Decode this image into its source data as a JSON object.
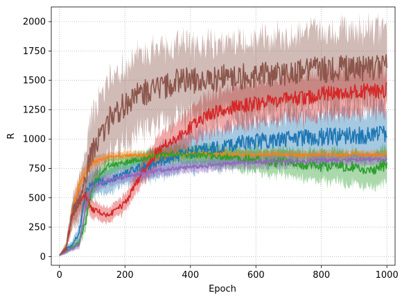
{
  "chart_data": {
    "type": "line",
    "title": "",
    "xlabel": "Epoch",
    "ylabel": "R",
    "xlim": [
      -25,
      1025
    ],
    "ylim": [
      -75,
      2125
    ],
    "xticks": [
      0,
      200,
      400,
      600,
      800,
      1000
    ],
    "yticks": [
      0,
      250,
      500,
      750,
      1000,
      1250,
      1500,
      1750,
      2000
    ],
    "grid": true,
    "grid_style": "dotted",
    "legend": "none",
    "series": [
      {
        "color": "#1f77b4",
        "x": [
          0,
          20,
          40,
          60,
          80,
          100,
          150,
          200,
          250,
          300,
          350,
          400,
          450,
          500,
          550,
          600,
          650,
          700,
          750,
          800,
          850,
          900,
          950,
          1000
        ],
        "y": [
          10,
          60,
          100,
          200,
          550,
          620,
          650,
          700,
          760,
          790,
          850,
          880,
          920,
          930,
          970,
          980,
          990,
          1000,
          1010,
          1020,
          1020,
          1030,
          1040,
          1050
        ],
        "band": [
          5,
          20,
          30,
          50,
          80,
          90,
          80,
          80,
          90,
          100,
          110,
          120,
          130,
          140,
          140,
          150,
          150,
          160,
          160,
          170,
          170,
          170,
          180,
          180
        ]
      },
      {
        "color": "#ff7f0e",
        "x": [
          0,
          20,
          40,
          60,
          80,
          100,
          150,
          200,
          250,
          300,
          350,
          400,
          450,
          500,
          550,
          600,
          650,
          700,
          750,
          800,
          850,
          900,
          950,
          1000
        ],
        "y": [
          10,
          80,
          400,
          600,
          720,
          800,
          850,
          860,
          860,
          860,
          870,
          870,
          870,
          870,
          870,
          860,
          870,
          870,
          860,
          870,
          860,
          870,
          860,
          870
        ],
        "band": [
          5,
          20,
          60,
          60,
          50,
          40,
          30,
          30,
          30,
          30,
          30,
          30,
          30,
          30,
          30,
          30,
          30,
          30,
          30,
          30,
          30,
          30,
          30,
          30
        ]
      },
      {
        "color": "#2ca02c",
        "x": [
          0,
          20,
          40,
          60,
          80,
          100,
          150,
          200,
          250,
          300,
          350,
          400,
          450,
          500,
          550,
          600,
          650,
          700,
          750,
          800,
          850,
          900,
          950,
          1000
        ],
        "y": [
          10,
          40,
          80,
          120,
          300,
          600,
          770,
          800,
          830,
          860,
          870,
          860,
          860,
          850,
          830,
          830,
          800,
          820,
          780,
          760,
          780,
          760,
          740,
          780
        ],
        "band": [
          5,
          15,
          20,
          30,
          60,
          70,
          60,
          50,
          50,
          50,
          60,
          60,
          70,
          70,
          80,
          80,
          90,
          90,
          100,
          100,
          110,
          110,
          110,
          120
        ]
      },
      {
        "color": "#d62728",
        "x": [
          0,
          20,
          40,
          60,
          80,
          100,
          150,
          200,
          250,
          300,
          350,
          400,
          450,
          500,
          550,
          600,
          650,
          700,
          750,
          800,
          850,
          900,
          950,
          1000
        ],
        "y": [
          10,
          60,
          350,
          480,
          520,
          400,
          350,
          450,
          700,
          900,
          1000,
          1100,
          1200,
          1250,
          1280,
          1300,
          1330,
          1350,
          1360,
          1380,
          1390,
          1400,
          1410,
          1420
        ],
        "band": [
          5,
          20,
          80,
          80,
          70,
          60,
          50,
          60,
          80,
          100,
          110,
          120,
          130,
          140,
          140,
          140,
          140,
          150,
          150,
          150,
          150,
          150,
          150,
          150
        ]
      },
      {
        "color": "#9467bd",
        "x": [
          0,
          20,
          40,
          60,
          80,
          100,
          150,
          200,
          250,
          300,
          350,
          400,
          450,
          500,
          550,
          600,
          650,
          700,
          750,
          800,
          850,
          900,
          950,
          1000
        ],
        "y": [
          10,
          40,
          70,
          100,
          420,
          600,
          650,
          680,
          700,
          730,
          750,
          760,
          770,
          790,
          800,
          800,
          810,
          810,
          810,
          820,
          820,
          820,
          830,
          820
        ],
        "band": [
          5,
          15,
          20,
          30,
          40,
          40,
          40,
          40,
          40,
          40,
          40,
          40,
          40,
          40,
          40,
          40,
          40,
          40,
          40,
          40,
          40,
          40,
          40,
          40
        ]
      },
      {
        "color": "#8c564b",
        "x": [
          0,
          20,
          40,
          60,
          80,
          100,
          150,
          200,
          250,
          300,
          350,
          400,
          450,
          500,
          550,
          600,
          650,
          700,
          750,
          800,
          850,
          900,
          950,
          1000
        ],
        "y": [
          10,
          80,
          380,
          450,
          700,
          900,
          1150,
          1300,
          1380,
          1440,
          1480,
          1500,
          1500,
          1520,
          1530,
          1550,
          1560,
          1560,
          1580,
          1590,
          1600,
          1600,
          1610,
          1620
        ],
        "band": [
          5,
          30,
          100,
          150,
          200,
          250,
          260,
          260,
          260,
          260,
          260,
          250,
          250,
          250,
          250,
          250,
          250,
          250,
          250,
          250,
          250,
          250,
          260,
          260
        ]
      }
    ]
  }
}
